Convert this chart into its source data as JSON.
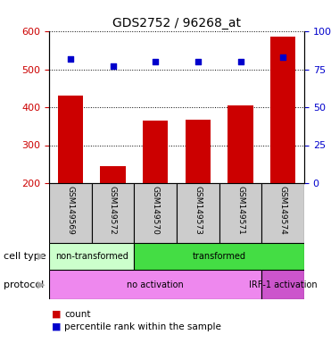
{
  "title": "GDS2752 / 96268_at",
  "samples": [
    "GSM149569",
    "GSM149572",
    "GSM149570",
    "GSM149573",
    "GSM149571",
    "GSM149574"
  ],
  "counts": [
    430,
    245,
    365,
    368,
    405,
    585
  ],
  "percentiles": [
    82,
    77,
    80,
    80,
    80,
    83
  ],
  "ylim_left": [
    200,
    600
  ],
  "ylim_right": [
    0,
    100
  ],
  "yticks_left": [
    200,
    300,
    400,
    500,
    600
  ],
  "yticks_right": [
    0,
    25,
    50,
    75,
    100
  ],
  "bar_color": "#cc0000",
  "dot_color": "#0000cc",
  "cell_type_groups": [
    {
      "label": "non-transformed",
      "start": 0,
      "end": 2,
      "color": "#ccffcc"
    },
    {
      "label": "transformed",
      "start": 2,
      "end": 6,
      "color": "#44dd44"
    }
  ],
  "protocol_groups": [
    {
      "label": "no activation",
      "start": 0,
      "end": 5,
      "color": "#ee88ee"
    },
    {
      "label": "IRF-1 activation",
      "start": 5,
      "end": 6,
      "color": "#cc55cc"
    }
  ],
  "legend_count_label": "count",
  "legend_percentile_label": "percentile rank within the sample",
  "tick_label_color": "#cccccc"
}
